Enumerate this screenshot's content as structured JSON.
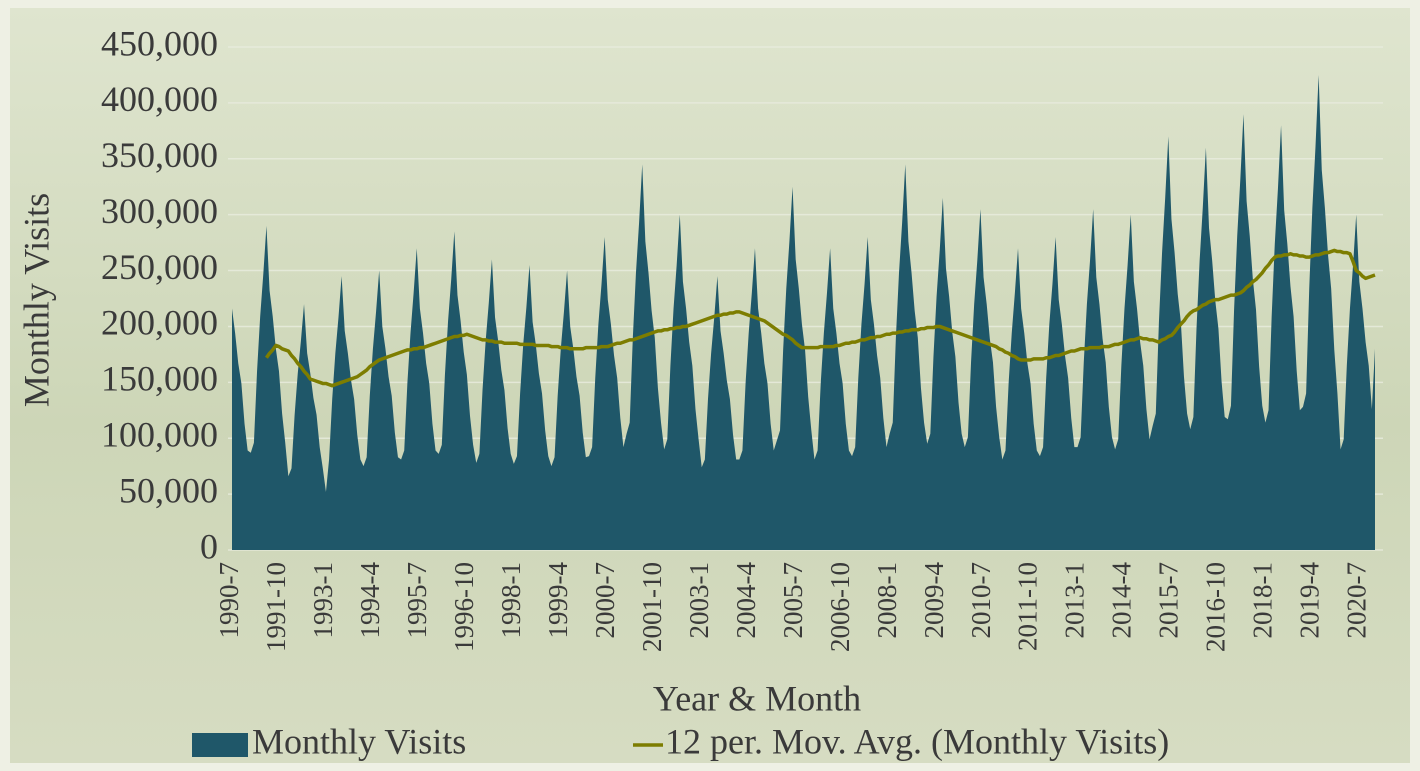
{
  "chart_data": {
    "type": "area",
    "x_label": "Year & Month",
    "y_label": "Monthly Visits",
    "ylim": [
      0,
      450000
    ],
    "yticks": [
      0,
      {
        "value": 50000,
        "label": "50,000"
      },
      {
        "value": 100000,
        "label": "100,000"
      },
      {
        "value": 150000,
        "label": "150,000"
      },
      {
        "value": 200000,
        "label": "200,000"
      },
      {
        "value": 250000,
        "label": "250,000"
      },
      {
        "value": 300000,
        "label": "300,000"
      },
      {
        "value": 350000,
        "label": "350,000"
      },
      {
        "value": 400000,
        "label": "400,000"
      },
      {
        "value": 450000,
        "label": "450,000"
      }
    ],
    "grid": true,
    "legend": "bottom",
    "categories": [
      "1990-7",
      null,
      null,
      null,
      null,
      null,
      null,
      null,
      null,
      null,
      null,
      null,
      null,
      null,
      null,
      "1991-10",
      null,
      null,
      null,
      null,
      null,
      null,
      null,
      null,
      null,
      null,
      null,
      null,
      null,
      null,
      "1993-1",
      null,
      null,
      null,
      null,
      null,
      null,
      null,
      null,
      null,
      null,
      null,
      null,
      null,
      null,
      "1994-4",
      null,
      null,
      null,
      null,
      null,
      null,
      null,
      null,
      null,
      null,
      null,
      null,
      null,
      null,
      "1995-7",
      null,
      null,
      null,
      null,
      null,
      null,
      null,
      null,
      null,
      null,
      null,
      null,
      null,
      null,
      "1996-10",
      null,
      null,
      null,
      null,
      null,
      null,
      null,
      null,
      null,
      null,
      null,
      null,
      null,
      null,
      "1998-1",
      null,
      null,
      null,
      null,
      null,
      null,
      null,
      null,
      null,
      null,
      null,
      null,
      null,
      null,
      "1999-4",
      null,
      null,
      null,
      null,
      null,
      null,
      null,
      null,
      null,
      null,
      null,
      null,
      null,
      null,
      "2000-7",
      null,
      null,
      null,
      null,
      null,
      null,
      null,
      null,
      null,
      null,
      null,
      null,
      null,
      null,
      "2001-10",
      null,
      null,
      null,
      null,
      null,
      null,
      null,
      null,
      null,
      null,
      null,
      null,
      null,
      null,
      "2003-1",
      null,
      null,
      null,
      null,
      null,
      null,
      null,
      null,
      null,
      null,
      null,
      null,
      null,
      null,
      "2004-4",
      null,
      null,
      null,
      null,
      null,
      null,
      null,
      null,
      null,
      null,
      null,
      null,
      null,
      null,
      "2005-7",
      null,
      null,
      null,
      null,
      null,
      null,
      null,
      null,
      null,
      null,
      null,
      null,
      null,
      null,
      "2006-10",
      null,
      null,
      null,
      null,
      null,
      null,
      null,
      null,
      null,
      null,
      null,
      null,
      null,
      null,
      "2008-1",
      null,
      null,
      null,
      null,
      null,
      null,
      null,
      null,
      null,
      null,
      null,
      null,
      null,
      null,
      "2009-4",
      null,
      null,
      null,
      null,
      null,
      null,
      null,
      null,
      null,
      null,
      null,
      null,
      null,
      null,
      "2010-7",
      null,
      null,
      null,
      null,
      null,
      null,
      null,
      null,
      null,
      null,
      null,
      null,
      null,
      null,
      "2011-10",
      null,
      null,
      null,
      null,
      null,
      null,
      null,
      null,
      null,
      null,
      null,
      null,
      null,
      null,
      "2013-1",
      null,
      null,
      null,
      null,
      null,
      null,
      null,
      null,
      null,
      null,
      null,
      null,
      null,
      null,
      "2014-4",
      null,
      null,
      null,
      null,
      null,
      null,
      null,
      null,
      null,
      null,
      null,
      null,
      null,
      null,
      "2015-7",
      null,
      null,
      null,
      null,
      null,
      null,
      null,
      null,
      null,
      null,
      null,
      null,
      null,
      null,
      "2016-10",
      null,
      null,
      null,
      null,
      null,
      null,
      null,
      null,
      null,
      null,
      null,
      null,
      null,
      null,
      "2018-1",
      null,
      null,
      null,
      null,
      null,
      null,
      null,
      null,
      null,
      null,
      null,
      null,
      null,
      null,
      "2019-4",
      null,
      null,
      null,
      null,
      null,
      null,
      null,
      null,
      null,
      null,
      null,
      null,
      null,
      null,
      "2020-7",
      null,
      null,
      null,
      null,
      null
    ],
    "series": [
      {
        "name": "Monthly Visits",
        "type": "area",
        "color": "#1f5769",
        "values": [
          216000,
          194000,
          167000,
          149000,
          113000,
          89000,
          87000,
          96000,
          160000,
          209000,
          247000,
          290000,
          232000,
          209000,
          180000,
          160000,
          122000,
          96000,
          66000,
          73000,
          121000,
          158000,
          187000,
          220000,
          176000,
          158000,
          136000,
          121000,
          92000,
          73000,
          52000,
          81000,
          135000,
          176000,
          208000,
          245000,
          196000,
          176000,
          152000,
          135000,
          103000,
          81000,
          75000,
          83000,
          138000,
          180000,
          213000,
          250000,
          200000,
          180000,
          155000,
          138000,
          105000,
          83000,
          81000,
          89000,
          149000,
          194000,
          230000,
          270000,
          216000,
          194000,
          167000,
          149000,
          113000,
          89000,
          86000,
          94000,
          157000,
          205000,
          242000,
          285000,
          228000,
          205000,
          177000,
          157000,
          120000,
          94000,
          78000,
          86000,
          143000,
          187000,
          221000,
          260000,
          208000,
          187000,
          161000,
          143000,
          109000,
          86000,
          77000,
          84000,
          140000,
          184000,
          217000,
          255000,
          204000,
          184000,
          158000,
          140000,
          107000,
          84000,
          75000,
          83000,
          138000,
          180000,
          213000,
          250000,
          200000,
          180000,
          155000,
          138000,
          105000,
          83000,
          84000,
          92000,
          154000,
          202000,
          238000,
          280000,
          224000,
          202000,
          174000,
          154000,
          118000,
          92000,
          104000,
          114000,
          190000,
          248000,
          293000,
          345000,
          276000,
          248000,
          214000,
          190000,
          145000,
          114000,
          90000,
          99000,
          165000,
          216000,
          255000,
          300000,
          240000,
          216000,
          186000,
          165000,
          126000,
          99000,
          74000,
          81000,
          135000,
          176000,
          208000,
          245000,
          196000,
          176000,
          152000,
          135000,
          103000,
          81000,
          81000,
          89000,
          149000,
          194000,
          230000,
          270000,
          216000,
          194000,
          167000,
          149000,
          113000,
          89000,
          98000,
          107000,
          179000,
          234000,
          276000,
          325000,
          260000,
          234000,
          202000,
          179000,
          137000,
          107000,
          81000,
          89000,
          149000,
          194000,
          230000,
          270000,
          216000,
          194000,
          167000,
          149000,
          113000,
          89000,
          84000,
          92000,
          154000,
          202000,
          238000,
          280000,
          224000,
          202000,
          174000,
          154000,
          118000,
          92000,
          104000,
          114000,
          190000,
          248000,
          293000,
          345000,
          276000,
          248000,
          214000,
          190000,
          145000,
          114000,
          95000,
          104000,
          173000,
          227000,
          268000,
          315000,
          252000,
          227000,
          195000,
          173000,
          132000,
          104000,
          92000,
          101000,
          168000,
          220000,
          259000,
          305000,
          244000,
          220000,
          189000,
          168000,
          128000,
          101000,
          81000,
          89000,
          149000,
          194000,
          230000,
          270000,
          216000,
          194000,
          167000,
          149000,
          113000,
          89000,
          84000,
          92000,
          154000,
          202000,
          238000,
          280000,
          224000,
          202000,
          174000,
          154000,
          118000,
          92000,
          92000,
          101000,
          168000,
          220000,
          259000,
          305000,
          244000,
          220000,
          189000,
          168000,
          128000,
          101000,
          90000,
          99000,
          165000,
          216000,
          255000,
          300000,
          240000,
          216000,
          186000,
          165000,
          126000,
          99000,
          111000,
          122000,
          204000,
          266000,
          315000,
          370000,
          296000,
          266000,
          229000,
          204000,
          155000,
          122000,
          108000,
          119000,
          198000,
          259000,
          306000,
          360000,
          288000,
          259000,
          223000,
          198000,
          151000,
          119000,
          117000,
          129000,
          215000,
          281000,
          332000,
          390000,
          312000,
          281000,
          242000,
          215000,
          164000,
          129000,
          114000,
          125000,
          209000,
          274000,
          323000,
          380000,
          304000,
          274000,
          236000,
          209000,
          160000,
          125000,
          128000,
          140000,
          234000,
          306000,
          361000,
          425000,
          340000,
          306000,
          264000,
          234000,
          179000,
          140000,
          90000,
          99000,
          165000,
          216000,
          255000,
          300000,
          240000,
          216000,
          186000,
          165000,
          126000,
          180000
        ]
      },
      {
        "name": "12 per. Mov. Avg. (Monthly Visits)",
        "type": "line",
        "color": "#7d7d00",
        "values": [
          null,
          null,
          null,
          null,
          null,
          null,
          null,
          null,
          null,
          null,
          null,
          172000,
          176000,
          179000,
          183000,
          182000,
          180000,
          179000,
          178000,
          174000,
          171000,
          167000,
          164000,
          160000,
          157000,
          153000,
          152000,
          151000,
          150000,
          149000,
          149000,
          148000,
          147000,
          148000,
          149000,
          150000,
          151000,
          152000,
          153000,
          154000,
          155000,
          157000,
          159000,
          161000,
          164000,
          166000,
          168000,
          170000,
          171000,
          172000,
          173000,
          174000,
          175000,
          176000,
          177000,
          178000,
          179000,
          179000,
          180000,
          180000,
          181000,
          181000,
          182000,
          183000,
          184000,
          185000,
          186000,
          187000,
          188000,
          189000,
          190000,
          191000,
          191000,
          192000,
          192000,
          193000,
          192000,
          191000,
          190000,
          189000,
          188000,
          188000,
          187000,
          187000,
          186000,
          186000,
          186000,
          185000,
          185000,
          185000,
          185000,
          185000,
          184000,
          184000,
          184000,
          184000,
          184000,
          183000,
          183000,
          183000,
          183000,
          183000,
          182000,
          182000,
          182000,
          181000,
          181000,
          181000,
          180000,
          180000,
          180000,
          180000,
          180000,
          181000,
          181000,
          181000,
          181000,
          181000,
          182000,
          182000,
          182000,
          183000,
          184000,
          185000,
          185000,
          186000,
          187000,
          188000,
          188000,
          189000,
          190000,
          191000,
          192000,
          193000,
          194000,
          195000,
          196000,
          196000,
          197000,
          197000,
          198000,
          198000,
          199000,
          199000,
          200000,
          200000,
          201000,
          202000,
          203000,
          204000,
          205000,
          206000,
          207000,
          208000,
          209000,
          210000,
          210000,
          211000,
          211000,
          212000,
          212000,
          213000,
          213000,
          212000,
          211000,
          210000,
          209000,
          208000,
          207000,
          206000,
          205000,
          203000,
          201000,
          199000,
          197000,
          195000,
          193000,
          192000,
          190000,
          188000,
          185000,
          183000,
          181000,
          181000,
          181000,
          181000,
          181000,
          181000,
          182000,
          182000,
          182000,
          182000,
          182000,
          183000,
          183000,
          184000,
          185000,
          185000,
          186000,
          186000,
          187000,
          188000,
          188000,
          189000,
          190000,
          190000,
          191000,
          191000,
          192000,
          193000,
          193000,
          194000,
          194000,
          195000,
          195000,
          196000,
          196000,
          197000,
          197000,
          197000,
          198000,
          198000,
          199000,
          199000,
          199000,
          200000,
          200000,
          199000,
          198000,
          197000,
          196000,
          195000,
          194000,
          193000,
          192000,
          191000,
          190000,
          189000,
          188000,
          187000,
          186000,
          185000,
          184000,
          183000,
          182000,
          180000,
          179000,
          177000,
          176000,
          174000,
          173000,
          171000,
          170000,
          170000,
          170000,
          170000,
          171000,
          171000,
          171000,
          171000,
          172000,
          172000,
          173000,
          174000,
          174000,
          175000,
          176000,
          177000,
          178000,
          178000,
          179000,
          180000,
          180000,
          180000,
          181000,
          181000,
          181000,
          181000,
          182000,
          182000,
          182000,
          183000,
          184000,
          184000,
          185000,
          186000,
          187000,
          188000,
          188000,
          189000,
          190000,
          189000,
          189000,
          188000,
          188000,
          187000,
          186000,
          188000,
          189000,
          191000,
          192000,
          195000,
          199000,
          202000,
          205000,
          209000,
          212000,
          214000,
          215000,
          217000,
          219000,
          220000,
          222000,
          223000,
          224000,
          224000,
          225000,
          226000,
          227000,
          228000,
          228000,
          229000,
          230000,
          232000,
          235000,
          237000,
          240000,
          242000,
          245000,
          248000,
          252000,
          255000,
          259000,
          262000,
          263000,
          263000,
          264000,
          264000,
          265000,
          264000,
          264000,
          263000,
          263000,
          262000,
          262000,
          263000,
          264000,
          264000,
          265000,
          266000,
          266000,
          267000,
          268000,
          267000,
          267000,
          266000,
          266000,
          265000,
          258000,
          250000,
          248000,
          245000,
          243000,
          244000,
          245000,
          246000
        ]
      }
    ]
  }
}
